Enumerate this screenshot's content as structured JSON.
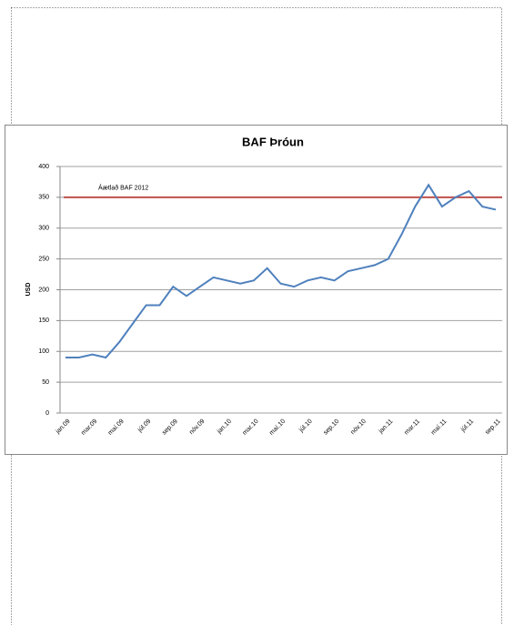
{
  "chart_data": {
    "type": "line",
    "title": "BAF Þróun",
    "y_label": "USD",
    "categories": [
      "jan.09",
      null,
      "mar.09",
      null,
      "maí.09",
      null,
      "júl.09",
      null,
      "sep.09",
      null,
      "nóv.09",
      null,
      "jan.10",
      null,
      "mar.10",
      null,
      "maí.10",
      null,
      "júl.10",
      null,
      "sep.10",
      null,
      "nóv.10",
      null,
      "jan.11",
      null,
      "mar.11",
      null,
      "maí.11",
      null,
      "júl.11",
      null,
      "sep.11"
    ],
    "series": [
      {
        "name": "BAF",
        "color": "#4f81bd",
        "values": [
          90,
          90,
          95,
          90,
          115,
          145,
          175,
          175,
          205,
          190,
          205,
          220,
          215,
          210,
          215,
          235,
          210,
          205,
          215,
          220,
          215,
          230,
          235,
          240,
          250,
          290,
          335,
          370,
          335,
          350,
          360,
          335,
          330
        ]
      }
    ],
    "reference_line": {
      "value": 350,
      "label": "Áætlað BAF 2012",
      "color": "#c0504d"
    },
    "ylim": [
      0,
      400
    ],
    "yticks": [
      0,
      50,
      100,
      150,
      200,
      250,
      300,
      350,
      400
    ],
    "grid": true
  }
}
